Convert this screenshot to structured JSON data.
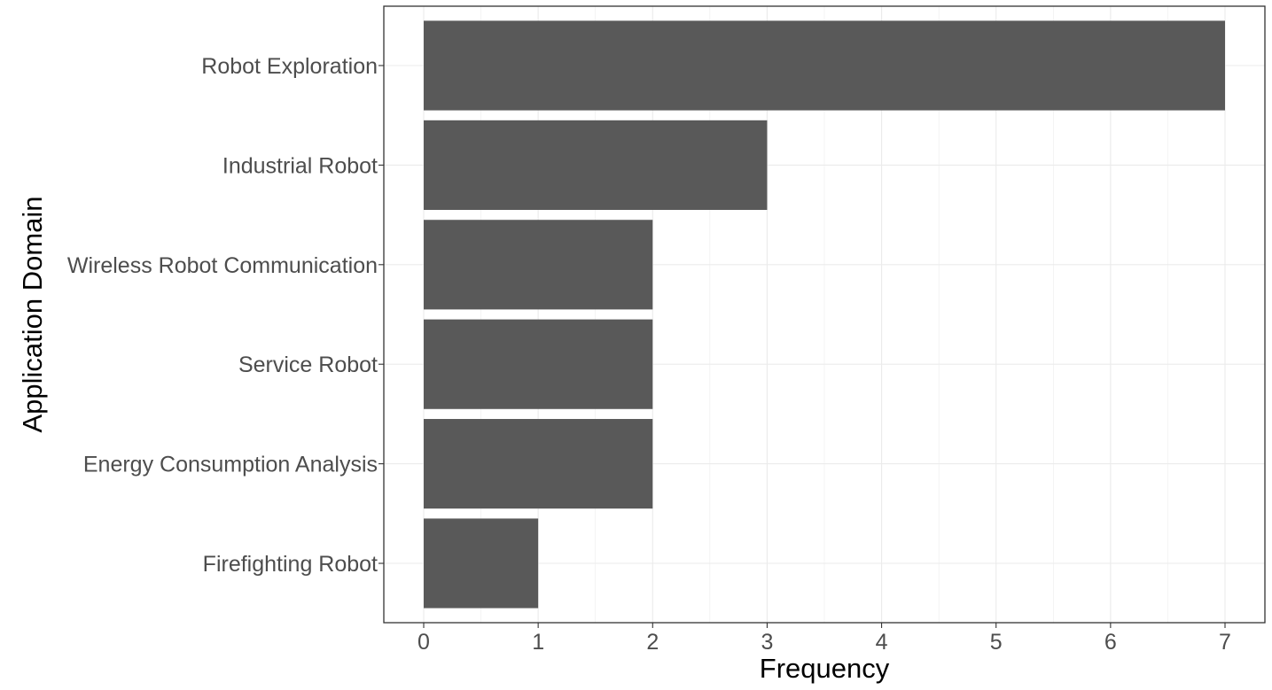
{
  "chart_data": {
    "type": "bar",
    "orientation": "horizontal",
    "title": "",
    "xlabel": "Frequency",
    "ylabel": "Application Domain",
    "categories": [
      "Robot Exploration",
      "Industrial Robot",
      "Wireless Robot Communication",
      "Service Robot",
      "Energy Consumption Analysis",
      "Firefighting Robot"
    ],
    "values": [
      7,
      3,
      2,
      2,
      2,
      1
    ],
    "xlim": [
      0,
      7
    ],
    "xticks": [
      0,
      1,
      2,
      3,
      4,
      5,
      6,
      7
    ],
    "grid": true,
    "legend": "none",
    "bar_color": "#595959",
    "grid_color": "#ebebeb",
    "panel_border_color": "#333333",
    "tick_label_color": "#4d4d4d"
  }
}
